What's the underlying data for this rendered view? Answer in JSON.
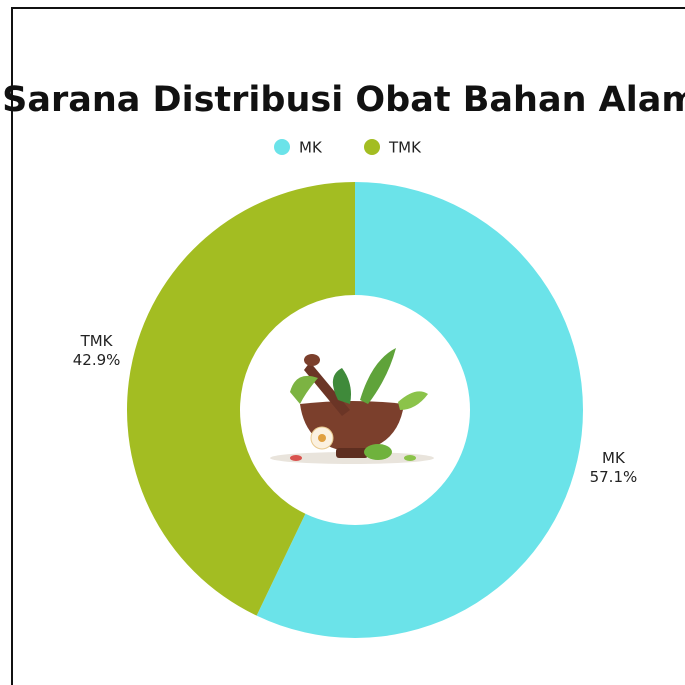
{
  "chart_data": {
    "type": "donut",
    "title": "Sarana Distribusi Obat Bahan Alam",
    "categories": [
      "MK",
      "TMK"
    ],
    "values": [
      57.1,
      42.9
    ],
    "value_labels": [
      "57.1%",
      "42.9%"
    ],
    "colors": [
      "#6be3e9",
      "#a3bd22"
    ],
    "legend": "top"
  }
}
